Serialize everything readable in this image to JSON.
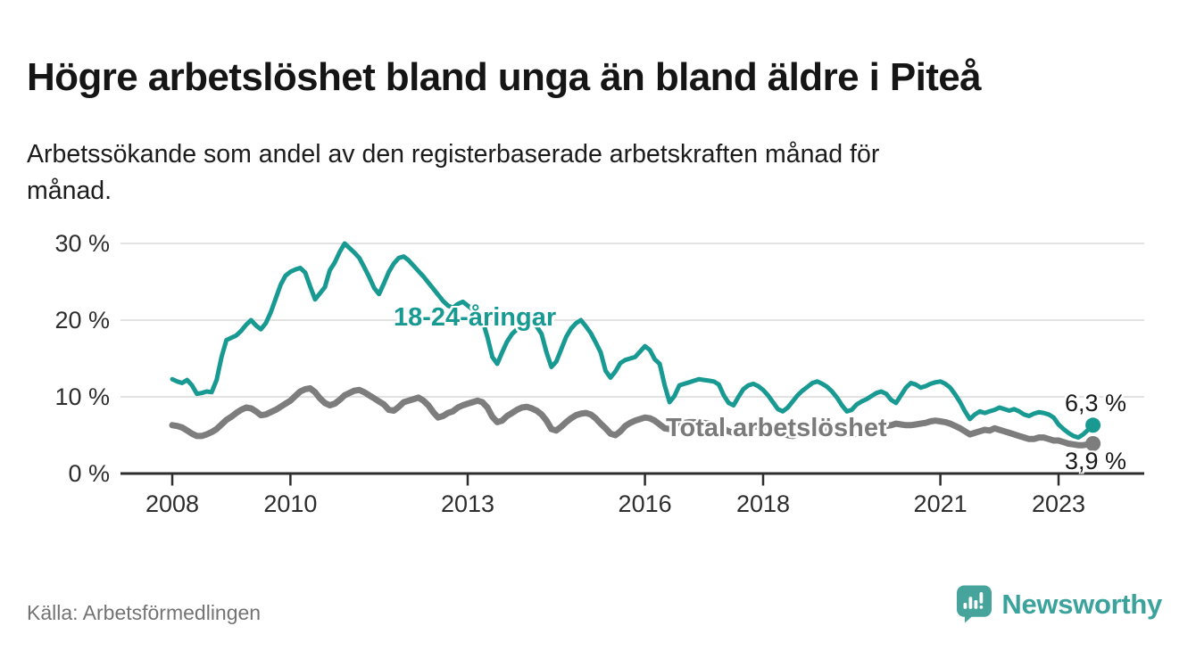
{
  "chart_data": {
    "type": "line",
    "title": "Högre arbetslöshet bland unga än bland äldre i Piteå",
    "subtitle_line1": "Arbetssökande som andel av den registerbaserade arbetskraften månad för",
    "subtitle_line2": "månad.",
    "source": "Källa: Arbetsförmedlingen",
    "unit": "percent of registered labour force",
    "x_start": "2008-01",
    "x_end": "2023-08",
    "x_interval": "monthly",
    "ylim": [
      0,
      30
    ],
    "grid": "horizontal",
    "legend_position": "inline-labels",
    "yticks": [
      {
        "value": 30,
        "label": "30 %"
      },
      {
        "value": 20,
        "label": "20 %"
      },
      {
        "value": 10,
        "label": "10 %"
      },
      {
        "value": 0,
        "label": "0 %"
      }
    ],
    "xticks": [
      {
        "year": 2008,
        "label": "2008"
      },
      {
        "year": 2010,
        "label": "2010"
      },
      {
        "year": 2013,
        "label": "2013"
      },
      {
        "year": 2016,
        "label": "2016"
      },
      {
        "year": 2018,
        "label": "2018"
      },
      {
        "year": 2021,
        "label": "2021"
      },
      {
        "year": 2023,
        "label": "2023"
      }
    ],
    "series": [
      {
        "name": "18-24-åringar",
        "color": "#189a92",
        "end_label": "6,3 %",
        "last_value": 6.3,
        "values": [
          12.3,
          12.0,
          11.8,
          12.2,
          11.5,
          10.4,
          10.5,
          10.7,
          10.6,
          12.2,
          15.2,
          17.4,
          17.7,
          18.0,
          18.6,
          19.4,
          20.0,
          19.3,
          18.8,
          19.6,
          21.0,
          22.8,
          24.6,
          25.8,
          26.3,
          26.6,
          26.8,
          26.2,
          24.4,
          22.7,
          23.5,
          24.3,
          26.5,
          27.5,
          28.9,
          30.0,
          29.4,
          28.8,
          28.1,
          26.9,
          25.6,
          24.2,
          23.4,
          24.8,
          26.3,
          27.4,
          28.1,
          28.3,
          27.8,
          27.1,
          26.4,
          25.7,
          24.9,
          24.1,
          23.3,
          22.5,
          21.9,
          21.6,
          22.1,
          22.4,
          21.9,
          21.4,
          20.8,
          20.0,
          17.8,
          15.2,
          14.3,
          15.8,
          17.2,
          18.2,
          18.8,
          19.1,
          19.4,
          19.6,
          19.2,
          18.2,
          15.8,
          13.9,
          14.6,
          16.2,
          17.8,
          18.9,
          19.6,
          20.0,
          19.2,
          18.3,
          17.1,
          15.8,
          13.4,
          12.5,
          13.3,
          14.4,
          14.8,
          15.0,
          15.2,
          15.9,
          16.6,
          16.1,
          14.9,
          14.3,
          11.5,
          9.3,
          10.1,
          11.5,
          11.7,
          11.9,
          12.1,
          12.3,
          12.2,
          12.1,
          12.0,
          11.6,
          10.2,
          9.2,
          8.9,
          10.0,
          11.0,
          11.5,
          11.7,
          11.4,
          10.9,
          10.2,
          9.3,
          8.4,
          8.1,
          8.6,
          9.4,
          10.2,
          10.8,
          11.3,
          11.8,
          12.0,
          11.7,
          11.3,
          10.7,
          9.9,
          8.9,
          8.1,
          8.3,
          9.0,
          9.4,
          9.7,
          10.1,
          10.5,
          10.7,
          10.4,
          9.6,
          9.2,
          10.2,
          11.2,
          11.8,
          11.6,
          11.2,
          11.4,
          11.7,
          11.9,
          12.0,
          11.7,
          11.2,
          10.3,
          9.3,
          8.1,
          7.1,
          7.7,
          8.1,
          7.9,
          8.1,
          8.3,
          8.6,
          8.4,
          8.2,
          8.4,
          8.1,
          7.7,
          7.5,
          7.8,
          8.0,
          7.9,
          7.7,
          7.3,
          6.4,
          5.8,
          5.3,
          4.9,
          4.7,
          5.1,
          5.7,
          6.3
        ]
      },
      {
        "name": "Total arbetslöshet",
        "color": "#7d7d7d",
        "end_label": "3,9 %",
        "last_value": 3.9,
        "values": [
          6.3,
          6.2,
          6.0,
          5.6,
          5.2,
          4.9,
          4.9,
          5.1,
          5.4,
          5.8,
          6.4,
          7.0,
          7.4,
          7.9,
          8.3,
          8.6,
          8.5,
          8.1,
          7.6,
          7.7,
          8.0,
          8.3,
          8.7,
          9.1,
          9.5,
          10.1,
          10.7,
          11.0,
          11.1,
          10.6,
          9.8,
          9.2,
          8.9,
          9.1,
          9.6,
          10.2,
          10.5,
          10.8,
          10.9,
          10.6,
          10.2,
          9.8,
          9.4,
          9.0,
          8.3,
          8.2,
          8.7,
          9.3,
          9.5,
          9.7,
          9.9,
          9.5,
          8.9,
          8.0,
          7.3,
          7.5,
          7.9,
          8.1,
          8.6,
          8.9,
          9.1,
          9.3,
          9.5,
          9.3,
          8.6,
          7.4,
          6.7,
          6.9,
          7.5,
          7.9,
          8.3,
          8.6,
          8.7,
          8.5,
          8.2,
          7.7,
          6.9,
          5.8,
          5.6,
          6.1,
          6.7,
          7.2,
          7.6,
          7.8,
          7.9,
          7.7,
          7.2,
          6.5,
          5.9,
          5.2,
          5.0,
          5.5,
          6.2,
          6.6,
          6.9,
          7.1,
          7.3,
          7.2,
          6.9,
          6.4,
          5.9,
          5.8,
          6.1,
          6.4,
          6.6,
          6.7,
          6.7,
          6.6,
          6.6,
          6.5,
          6.3,
          6.1,
          5.8,
          5.5,
          5.3,
          5.5,
          5.8,
          6.0,
          6.1,
          6.1,
          6.0,
          5.9,
          5.7,
          5.4,
          5.2,
          5.0,
          4.9,
          5.1,
          5.4,
          5.6,
          5.8,
          5.9,
          6.0,
          5.9,
          5.8,
          5.6,
          5.4,
          5.2,
          5.1,
          5.3,
          5.6,
          5.8,
          6.0,
          6.1,
          6.1,
          6.2,
          6.3,
          6.5,
          6.4,
          6.3,
          6.3,
          6.4,
          6.5,
          6.6,
          6.8,
          6.9,
          6.8,
          6.7,
          6.5,
          6.2,
          5.9,
          5.5,
          5.1,
          5.3,
          5.5,
          5.7,
          5.6,
          5.9,
          5.7,
          5.5,
          5.3,
          5.1,
          4.9,
          4.7,
          4.5,
          4.5,
          4.7,
          4.7,
          4.5,
          4.3,
          4.3,
          4.1,
          3.9,
          3.8,
          3.7,
          3.7,
          3.8,
          3.9
        ]
      }
    ]
  },
  "branding": {
    "wordmark": "Newsworthy",
    "logo_icon": "speech-bubble-bar-chart-icon",
    "logo_color": "#3ba39c"
  }
}
